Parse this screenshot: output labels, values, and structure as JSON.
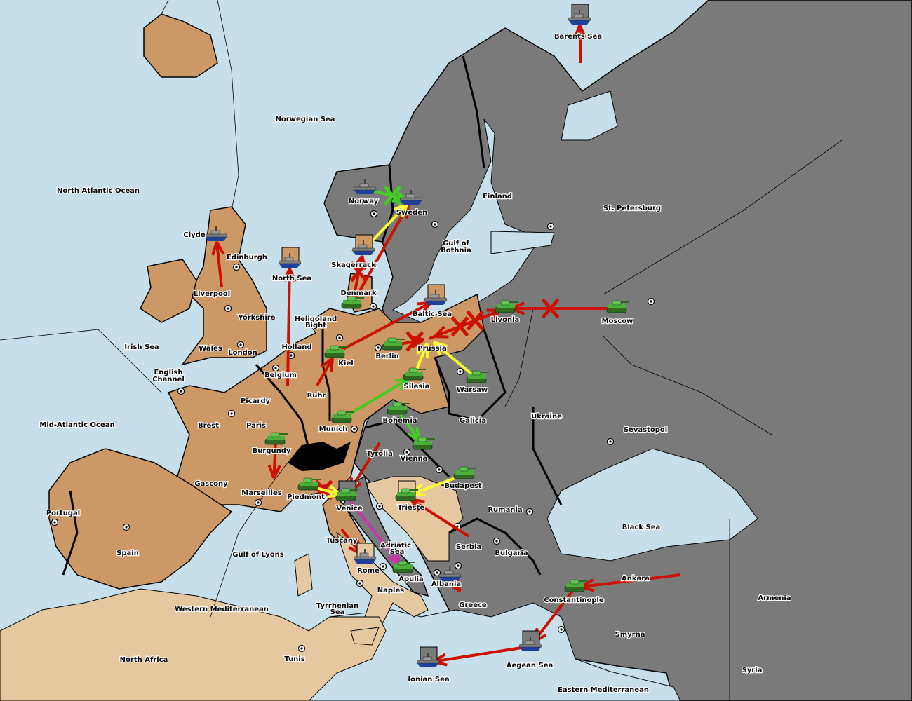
{
  "game": "Diplomacy",
  "colors": {
    "sea": "#c6dfea",
    "power_brown": "#cc9966",
    "power_tan": "#e6c8a0",
    "power_gray": "#7a7a7a",
    "neutral_black": "#000000",
    "move_order": "#cc1100",
    "support_yellow": "#ffff33",
    "support_green": "#44cc22",
    "convoy_magenta": "#cc33aa"
  },
  "territories": [
    "Barents Sea",
    "Norwegian Sea",
    "North Atlantic Ocean",
    "Norway",
    "Sweden",
    "Finland",
    "St. Petersburg",
    "Gulf of",
    "Bothnia",
    "Clyde",
    "Edinburgh",
    "Skagerrack",
    "North Sea",
    "Liverpool",
    "Denmark",
    "Yorkshire",
    "Baltic Sea",
    "Heligoland",
    "Bight",
    "Livonia",
    "Moscow",
    "Irish Sea",
    "Wales",
    "Holland",
    "London",
    "Prussia",
    "Kiel",
    "Berlin",
    "English",
    "Channel",
    "Belgium",
    "Warsaw",
    "Silesia",
    "Ruhr",
    "Picardy",
    "Ukraine",
    "Mid-Atlantic Ocean",
    "Brest",
    "Paris",
    "Munich",
    "Bohemia",
    "Galicia",
    "Sevastopol",
    "Burgundy",
    "Tyrolia",
    "Vienna",
    "Gascony",
    "Budapest",
    "Marseilles",
    "Piedmont",
    "Venice",
    "Trieste",
    "Rumania",
    "Portugal",
    "Black Sea",
    "Tuscany",
    "Adriatic",
    "Sea",
    "Serbia",
    "Spain",
    "Bulgaria",
    "Gulf of Lyons",
    "Rome",
    "Apulia",
    "Albania",
    "Ankara",
    "Naples",
    "Constantinople",
    "Armenia",
    "Greece",
    "Tyrrhenian",
    "Sea",
    "Western Mediterranean",
    "Smyrna",
    "North Africa",
    "Tunis",
    "Aegean Sea",
    "Ionian Sea",
    "Syria",
    "Eastern Mediterranean"
  ],
  "units": [
    {
      "type": "fleet",
      "location": "Barents Sea",
      "owner": "gray",
      "sc_box": true
    },
    {
      "type": "fleet",
      "location": "Norway",
      "owner": "gray"
    },
    {
      "type": "fleet",
      "location": "Sweden",
      "owner": "gray"
    },
    {
      "type": "fleet",
      "location": "Clyde",
      "owner": "brown"
    },
    {
      "type": "fleet",
      "location": "North Sea",
      "owner": "brown",
      "sc_box": true
    },
    {
      "type": "fleet",
      "location": "Skagerrack",
      "owner": "brown",
      "sc_box": true
    },
    {
      "type": "fleet",
      "location": "Baltic Sea",
      "owner": "brown",
      "sc_box": true
    },
    {
      "type": "fleet",
      "location": "Rome",
      "owner": "tan",
      "sc_box": true
    },
    {
      "type": "fleet",
      "location": "Albania",
      "owner": "gray"
    },
    {
      "type": "fleet",
      "location": "Aegean Sea",
      "owner": "gray",
      "sc_box": true
    },
    {
      "type": "fleet",
      "location": "Ionian Sea",
      "owner": "gray",
      "sc_box": true
    },
    {
      "type": "army",
      "location": "Denmark",
      "owner": "brown"
    },
    {
      "type": "army",
      "location": "Livonia",
      "owner": "gray"
    },
    {
      "type": "army",
      "location": "Moscow",
      "owner": "gray"
    },
    {
      "type": "army",
      "location": "Kiel",
      "owner": "brown"
    },
    {
      "type": "army",
      "location": "Berlin",
      "owner": "brown"
    },
    {
      "type": "army",
      "location": "Silesia",
      "owner": "brown"
    },
    {
      "type": "army",
      "location": "Warsaw",
      "owner": "gray"
    },
    {
      "type": "army",
      "location": "Munich",
      "owner": "brown"
    },
    {
      "type": "army",
      "location": "Bohemia",
      "owner": "gray"
    },
    {
      "type": "army",
      "location": "Vienna",
      "owner": "gray"
    },
    {
      "type": "army",
      "location": "Burgundy",
      "owner": "brown"
    },
    {
      "type": "army",
      "location": "Budapest",
      "owner": "gray"
    },
    {
      "type": "army",
      "location": "Piedmont",
      "owner": "brown"
    },
    {
      "type": "army",
      "location": "Venice",
      "owner": "gray",
      "sc_box": true
    },
    {
      "type": "army",
      "location": "Trieste",
      "owner": "tan",
      "sc_box": true
    },
    {
      "type": "army",
      "location": "Apulia",
      "owner": "gray"
    },
    {
      "type": "army",
      "location": "Constantinople",
      "owner": "gray"
    }
  ],
  "orders": [
    {
      "type": "move",
      "from": "St. Petersburg",
      "to": "Barents Sea"
    },
    {
      "type": "move",
      "from": "Liverpool",
      "to": "Clyde"
    },
    {
      "type": "move",
      "from": "Holland",
      "to": "North Sea"
    },
    {
      "type": "move",
      "from": "Denmark",
      "to": "Sweden"
    },
    {
      "type": "move",
      "from": "Denmark",
      "to": "Skagerrack",
      "failed": true
    },
    {
      "type": "support",
      "color": "yellow",
      "from": "Skagerrack",
      "to": "Sweden"
    },
    {
      "type": "support",
      "color": "green",
      "from": "Norway",
      "to": "Sweden",
      "failed": true
    },
    {
      "type": "move",
      "from": "Kiel",
      "to": "Baltic Sea"
    },
    {
      "type": "move",
      "from": "Ruhr",
      "to": "Kiel"
    },
    {
      "type": "move",
      "from": "Berlin",
      "to": "Prussia",
      "failed": true
    },
    {
      "type": "move",
      "from": "Livonia",
      "to": "Prussia",
      "failed": true
    },
    {
      "type": "move",
      "from": "Moscow",
      "to": "Livonia",
      "failed": true
    },
    {
      "type": "move",
      "from": "Prussia",
      "to": "Livonia",
      "failed": true
    },
    {
      "type": "support",
      "color": "yellow",
      "from": "Silesia",
      "to": "Prussia"
    },
    {
      "type": "support",
      "color": "yellow",
      "from": "Warsaw",
      "to": "Prussia"
    },
    {
      "type": "support",
      "color": "green",
      "from": "Munich",
      "to": "Silesia"
    },
    {
      "type": "support",
      "color": "green",
      "from": "Bohemia",
      "to": "Vienna"
    },
    {
      "type": "move",
      "from": "Burgundy",
      "to": "Marseilles"
    },
    {
      "type": "move",
      "from": "Tyrolia",
      "to": "Venice"
    },
    {
      "type": "move",
      "from": "Venice",
      "to": "Piedmont",
      "failed": true
    },
    {
      "type": "support",
      "color": "yellow",
      "from": "Piedmont",
      "to": "Venice"
    },
    {
      "type": "move",
      "from": "Tuscany",
      "to": "Rome"
    },
    {
      "type": "convoy",
      "from": "Venice",
      "to": "Apulia"
    },
    {
      "type": "support",
      "color": "yellow",
      "from": "Budapest",
      "to": "Trieste"
    },
    {
      "type": "move",
      "from": "Serbia",
      "to": "Trieste"
    },
    {
      "type": "move",
      "from": "Albania",
      "to": "Greece"
    },
    {
      "type": "move",
      "from": "Ankara",
      "to": "Constantinople"
    },
    {
      "type": "move",
      "from": "Constantinople",
      "to": "Aegean Sea"
    },
    {
      "type": "move",
      "from": "Aegean Sea",
      "to": "Ionian Sea"
    }
  ]
}
